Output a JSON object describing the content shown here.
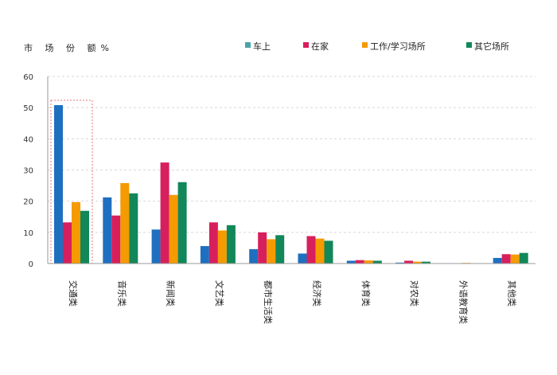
{
  "chart_data": {
    "type": "bar",
    "ylabel": "市 场 份 额%",
    "ylim": [
      0,
      60
    ],
    "yticks": [
      0,
      10,
      20,
      30,
      40,
      50,
      60
    ],
    "grid": true,
    "legend_position": "top-right",
    "categories": [
      "交通类",
      "音乐类",
      "新闻类",
      "文艺类",
      "都市生活类",
      "经济类",
      "体育类",
      "对农类",
      "外语教育类",
      "其他类"
    ],
    "series": [
      {
        "name": "车上",
        "color": "#1f6fc0",
        "legend_color": "#4aa3a9",
        "values": [
          50.8,
          21.2,
          10.9,
          5.6,
          4.6,
          3.2,
          0.9,
          0.3,
          0.0,
          1.8
        ]
      },
      {
        "name": "在家",
        "color": "#d81f5d",
        "values": [
          13.2,
          15.4,
          32.4,
          13.2,
          10.0,
          8.8,
          1.1,
          0.9,
          0.1,
          3.0
        ]
      },
      {
        "name": "工作/学习场所",
        "color": "#f59a00",
        "values": [
          19.7,
          25.8,
          22.0,
          10.6,
          7.8,
          8.0,
          1.0,
          0.6,
          0.2,
          2.9
        ]
      },
      {
        "name": "其它场所",
        "color": "#11875a",
        "values": [
          16.9,
          22.5,
          26.1,
          12.3,
          9.1,
          7.3,
          0.9,
          0.6,
          0.0,
          3.4
        ]
      }
    ],
    "annotation": {
      "type": "dashed-box",
      "category": "交通类",
      "color": "#e8777a"
    }
  }
}
